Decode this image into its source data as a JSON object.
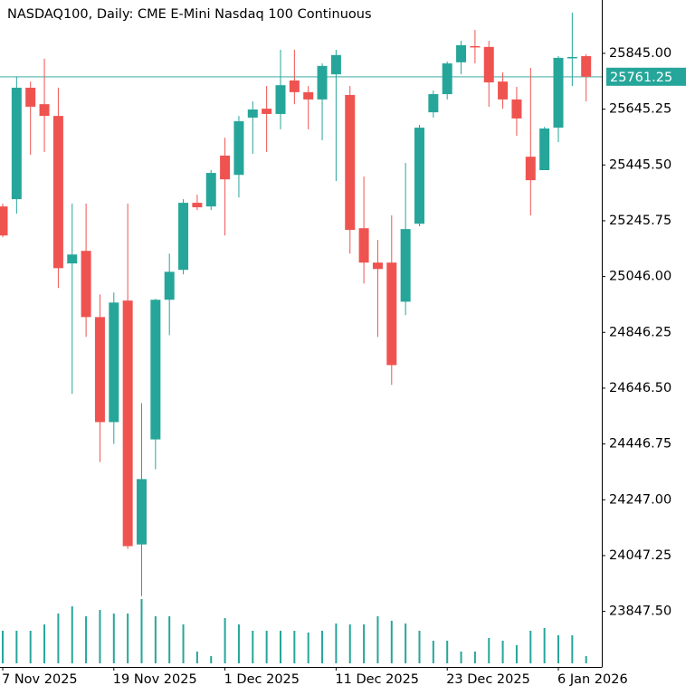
{
  "chart_data": {
    "type": "candlestick",
    "title": "NASDAQ100, Daily:  CME E-Mini Nasdaq 100 Continuous",
    "categories": [
      "7 Nov 2025",
      null,
      null,
      null,
      null,
      null,
      null,
      null,
      "19 Nov 2025",
      null,
      null,
      null,
      null,
      null,
      null,
      null,
      "1 Dec 2025",
      null,
      null,
      null,
      null,
      null,
      null,
      null,
      "11 Dec 2025",
      null,
      null,
      null,
      null,
      null,
      null,
      null,
      "23 Dec 2025",
      null,
      null,
      null,
      null,
      null,
      null,
      null,
      "6 Jan 2026",
      null,
      null
    ],
    "open": [
      25297,
      25323,
      25722,
      25663,
      25621,
      25093,
      25138,
      24901,
      24525,
      24960,
      24087,
      24463,
      24963,
      25070,
      25310,
      25297,
      25479,
      25410,
      25615,
      25647,
      25628,
      25748,
      25706,
      25680,
      25770,
      25696,
      25219,
      25096,
      25096,
      24956,
      25235,
      25634,
      25699,
      25813,
      25871,
      25868,
      25744,
      25680,
      25475,
      25427,
      25579,
      25829,
      25835
    ],
    "high": [
      25307,
      25761,
      25744,
      25826,
      25722,
      25307,
      25307,
      24982,
      24989,
      25307,
      24593,
      24966,
      25128,
      25323,
      25339,
      25427,
      25543,
      25621,
      25673,
      25728,
      25858,
      25858,
      25728,
      25809,
      25858,
      25728,
      25404,
      25177,
      25265,
      25453,
      25589,
      25712,
      25816,
      25890,
      25929,
      25890,
      25777,
      25725,
      25793,
      25582,
      25835,
      25991,
      25842
    ],
    "low": [
      25187,
      25271,
      25482,
      25492,
      25005,
      24626,
      24830,
      24382,
      24447,
      24071,
      23902,
      24356,
      24836,
      25054,
      25284,
      25284,
      25193,
      25329,
      25485,
      25492,
      25573,
      25663,
      25573,
      25534,
      25388,
      25128,
      25021,
      24830,
      24658,
      24908,
      25226,
      25615,
      25680,
      25770,
      25809,
      25654,
      25647,
      25550,
      25265,
      25427,
      25527,
      25728,
      25673
    ],
    "close": [
      25193,
      25722,
      25654,
      25621,
      25076,
      25125,
      24901,
      24525,
      24953,
      24081,
      24321,
      24963,
      25063,
      25310,
      25294,
      25417,
      25394,
      25602,
      25644,
      25628,
      25731,
      25706,
      25680,
      25800,
      25839,
      25213,
      25096,
      25073,
      24729,
      25216,
      25579,
      25699,
      25809,
      25874,
      25868,
      25741,
      25680,
      25612,
      25391,
      25576,
      25829,
      25832,
      25761.25
    ],
    "volume": [
      36,
      36,
      36,
      43,
      55,
      63,
      52,
      59,
      55,
      55,
      71,
      52,
      52,
      43,
      13,
      8,
      50,
      43,
      36,
      36,
      36,
      36,
      34,
      36,
      44,
      43,
      43,
      52,
      47,
      44,
      36,
      25,
      25,
      13,
      13,
      28,
      25,
      20,
      36,
      39,
      31,
      31,
      8
    ],
    "volume_lim": [
      0,
      80
    ],
    "up_color": "#26a69a",
    "down_color": "#ef5350",
    "last_price": 25761.25,
    "ylim": [
      23655,
      26036
    ],
    "yticks": [
      {
        "value": 25845,
        "label": "25845.00"
      },
      25645.25,
      {
        "value": 25445.5,
        "label": "25445.50"
      },
      25245.75,
      {
        "value": 25046,
        "label": "25046.00"
      },
      24846.25,
      {
        "value": 24646.5,
        "label": "24646.50"
      },
      24446.75,
      {
        "value": 24247,
        "label": "24247.00"
      },
      24047.25,
      {
        "value": 23847.5,
        "label": "23847.50"
      }
    ]
  }
}
